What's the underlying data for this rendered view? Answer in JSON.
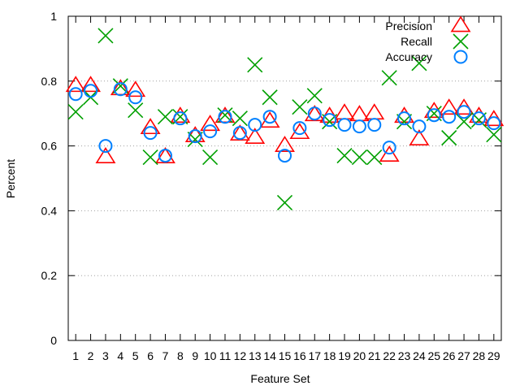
{
  "chart_data": {
    "type": "scatter",
    "xlabel": "Feature Set",
    "ylabel": "Percent",
    "xlim": [
      0.5,
      29.5
    ],
    "ylim": [
      0,
      1
    ],
    "x_ticks": [
      "1",
      "2",
      "3",
      "4",
      "5",
      "6",
      "7",
      "8",
      "9",
      "10",
      "11",
      "12",
      "13",
      "14",
      "15",
      "16",
      "17",
      "18",
      "19",
      "20",
      "21",
      "22",
      "23",
      "24",
      "25",
      "26",
      "27",
      "28",
      "29"
    ],
    "y_ticks": [
      "0",
      "0.2",
      "0.4",
      "0.6",
      "0.8",
      "1"
    ],
    "y_tick_values": [
      0,
      0.2,
      0.4,
      0.6,
      0.8,
      1.0
    ],
    "grid": "horizontal dotted",
    "legend_position": "top-right",
    "x": [
      1,
      2,
      3,
      4,
      5,
      6,
      7,
      8,
      9,
      10,
      11,
      12,
      13,
      14,
      15,
      16,
      17,
      18,
      19,
      20,
      21,
      22,
      23,
      24,
      25,
      26,
      27,
      28,
      29
    ],
    "series": [
      {
        "name": "Precision",
        "marker": "triangle",
        "color": "#ff0000",
        "values": [
          0.785,
          0.785,
          0.565,
          0.775,
          0.77,
          0.655,
          0.565,
          0.69,
          0.63,
          0.665,
          0.69,
          0.635,
          0.625,
          0.675,
          0.6,
          0.64,
          0.695,
          0.69,
          0.7,
          0.695,
          0.7,
          0.57,
          0.69,
          0.62,
          0.705,
          0.715,
          0.715,
          0.69,
          0.68
        ]
      },
      {
        "name": "Recall",
        "marker": "x",
        "color": "#00a000",
        "values": [
          0.705,
          0.75,
          0.94,
          0.785,
          0.71,
          0.565,
          0.69,
          0.69,
          0.62,
          0.565,
          0.695,
          0.685,
          0.85,
          0.75,
          0.425,
          0.72,
          0.755,
          0.675,
          0.57,
          0.565,
          0.565,
          0.81,
          0.675,
          0.855,
          0.7,
          0.625,
          0.675,
          0.68,
          0.635
        ]
      },
      {
        "name": "Accuracy",
        "marker": "circle",
        "color": "#0080ff",
        "values": [
          0.76,
          0.77,
          0.6,
          0.775,
          0.75,
          0.64,
          0.57,
          0.685,
          0.63,
          0.645,
          0.69,
          0.64,
          0.665,
          0.69,
          0.57,
          0.655,
          0.7,
          0.68,
          0.665,
          0.66,
          0.665,
          0.595,
          0.685,
          0.66,
          0.695,
          0.69,
          0.705,
          0.685,
          0.67
        ]
      }
    ]
  }
}
